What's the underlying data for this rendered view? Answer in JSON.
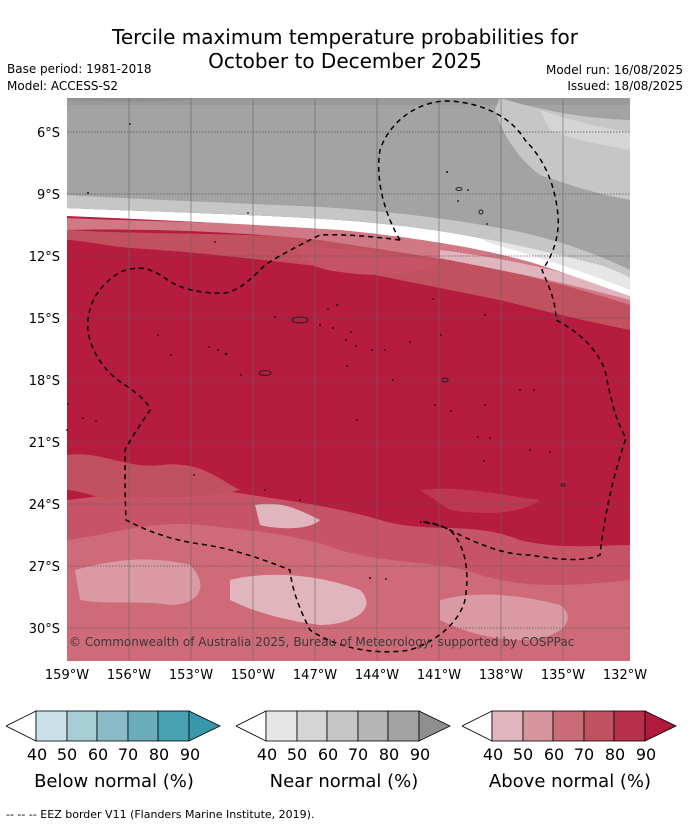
{
  "title": {
    "line1": "Tercile maximum temperature probabilities for",
    "line2": "October to December 2025"
  },
  "meta": {
    "base_period": "Base period: 1981-2018",
    "model": "Model: ACCESS-S2",
    "model_run": "Model run: 16/08/2025",
    "issued": "Issued: 18/08/2025"
  },
  "map": {
    "lat_labels": [
      "6°S",
      "9°S",
      "12°S",
      "15°S",
      "18°S",
      "21°S",
      "24°S",
      "27°S",
      "30°S"
    ],
    "lon_labels": [
      "159°W",
      "156°W",
      "153°W",
      "150°W",
      "147°W",
      "144°W",
      "141°W",
      "138°W",
      "135°W",
      "132°W"
    ],
    "copyright": "© Commonwealth of Australia 2025, Bureau of Meteorology, supported by COSPPac",
    "colors": {
      "near_normal_band": [
        "#a3a3a3",
        "#b5b5b5",
        "#c6c6c6",
        "#d5d5d5",
        "#e6e6e6"
      ],
      "above_normal_band": [
        "#b51c3e",
        "#bf3651",
        "#c75466",
        "#d07883",
        "#e0b5bd"
      ]
    }
  },
  "legends": [
    {
      "title": "Below normal (%)",
      "ticks": [
        "40",
        "50",
        "60",
        "70",
        "80",
        "90"
      ],
      "colors": [
        "#ffffff",
        "#c9e1e6",
        "#a6ccd4",
        "#89bac6",
        "#6badbb",
        "#47a1b1",
        "#3897aa"
      ]
    },
    {
      "title": "Near normal (%)",
      "ticks": [
        "40",
        "50",
        "60",
        "70",
        "80",
        "90"
      ],
      "colors": [
        "#ffffff",
        "#e6e6e6",
        "#d5d5d5",
        "#c6c6c6",
        "#b5b5b5",
        "#a3a3a3",
        "#8f8f8f"
      ]
    },
    {
      "title": "Above normal (%)",
      "ticks": [
        "40",
        "50",
        "60",
        "70",
        "80",
        "90"
      ],
      "colors": [
        "#ffffff",
        "#e0b5bd",
        "#d6959d",
        "#c96c78",
        "#c1515f",
        "#b8314a",
        "#b01a3d"
      ]
    }
  ],
  "footer": "--  --  -- EEZ border V11 (Flanders Marine Institute, 2019)."
}
